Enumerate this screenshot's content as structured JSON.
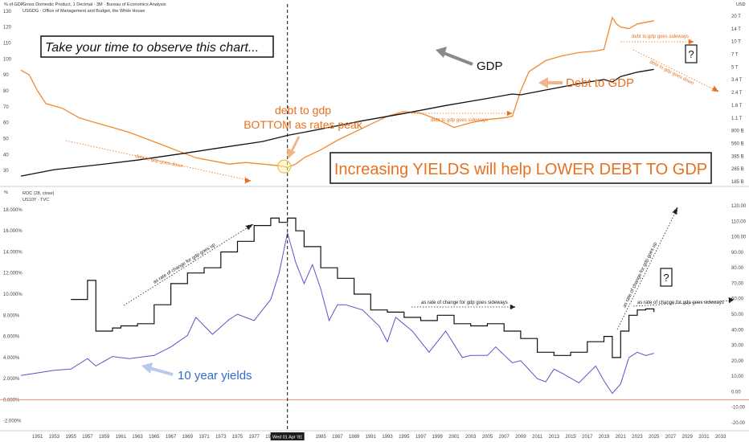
{
  "top_panel": {
    "left_unit": "% of GDP",
    "right_unit": "USD",
    "title_line1": "Gross Domestic Product, 1 Decimal · 3M · Bureau of Economics Analysis",
    "title_line2": "USGDG · Office of Management and Budget, the White House"
  },
  "bottom_panel": {
    "left_unit": "%",
    "title_line1": "ROC (28, close)",
    "title_line2": "US10Y · TVC"
  },
  "date_marker": "Wed 01 Apr '81",
  "annotations": {
    "observe": "Take your time to observe this chart...",
    "gdp": "GDP",
    "debt_to_gdp": "Debt to GDP",
    "bottom_line1": "debt to gdp",
    "bottom_line2": "BOTTOM as rates peak",
    "increasing": "Increasing YIELDS will help LOWER DEBT TO GDP",
    "goes_down_1": "debt to gdp goes down",
    "goes_sideways_1": "debt to gdp goes sideways",
    "goes_sideways_2": "debt to gdp goes sideways",
    "goes_down_2": "debt to gdp goes down",
    "question": "?",
    "roc_up_1": "as rate of change for gdp goes up",
    "roc_sideways": "as rate of change for gdp goes sideways",
    "roc_up_2": "as rate of change for gdp goes up",
    "roc_sideways_2": "as rate of change for gdp goes sideways",
    "ten_year": "10 year yields"
  },
  "colors": {
    "gdp": "#111111",
    "debt": "#f2892c",
    "yields": "#6050c8",
    "roc": "#111111",
    "zero": "#f4a07a",
    "accent_orange": "#e8701e",
    "accent_blue": "#2f6bd0",
    "marker": "#f5c43a"
  },
  "chart_data": [
    {
      "type": "line",
      "name": "top",
      "xlim": [
        1949,
        2034
      ],
      "ylim_left": [
        23,
        135
      ],
      "yticks_left": [
        30,
        40,
        50,
        60,
        70,
        80,
        90,
        100,
        110,
        120,
        130
      ],
      "ytick_labels_right": [
        "185 B",
        "265 B",
        "385 B",
        "560 B",
        "800 B",
        "1.1 T",
        "1.6 T",
        "2.4 T",
        "3.4 T",
        "5 T",
        "7 T",
        "10 T",
        "14 T",
        "20 T"
      ],
      "series": [
        {
          "name": "Debt to GDP",
          "x": [
            1949,
            1950,
            1951,
            1952,
            1954,
            1956,
            1958,
            1960,
            1962,
            1964,
            1966,
            1968,
            1970,
            1972,
            1974,
            1976,
            1978,
            1980,
            1981,
            1982,
            1983,
            1985,
            1987,
            1989,
            1991,
            1993,
            1995,
            1997,
            1999,
            2001,
            2003,
            2005,
            2007,
            2008,
            2009,
            2010,
            2012,
            2014,
            2016,
            2018,
            2019,
            2020,
            2020.5,
            2021,
            2022,
            2023,
            2024,
            2025
          ],
          "y": [
            93,
            90,
            80,
            72,
            69,
            63,
            60,
            57,
            54,
            50,
            46,
            42,
            38,
            36,
            34,
            35,
            34,
            33,
            32,
            34,
            38,
            43,
            49,
            54,
            59,
            64,
            67,
            66,
            62,
            57,
            60,
            62,
            63,
            64,
            80,
            92,
            99,
            102,
            104,
            105,
            106,
            126,
            122,
            120,
            119,
            122,
            123,
            124
          ]
        },
        {
          "name": "GDP",
          "x": [
            1949,
            1953,
            1958,
            1963,
            1968,
            1973,
            1978,
            1981,
            1985,
            1990,
            1995,
            2000,
            2005,
            2008,
            2009,
            2012,
            2016,
            2019,
            2020,
            2021,
            2023,
            2025
          ],
          "y": [
            26.5,
            30.5,
            33.4,
            36.5,
            40.3,
            44.3,
            48.2,
            52.0,
            56.0,
            61.2,
            65.8,
            70.8,
            75.2,
            78.0,
            77.5,
            80.5,
            84.5,
            87.1,
            85.5,
            89.0,
            91.7,
            93.5
          ]
        }
      ]
    },
    {
      "type": "line",
      "name": "bottom",
      "xlim": [
        1949,
        2034
      ],
      "ylim": [
        -2.4,
        18.6
      ],
      "yticks_left": [
        -2,
        0,
        2,
        4,
        6,
        8,
        10,
        12,
        14,
        16,
        18
      ],
      "ytick_labels_left": [
        "-2.000%",
        "0.000%",
        "2.000%",
        "4.000%",
        "6.000%",
        "8.000%",
        "10.000%",
        "12.000%",
        "14.000%",
        "16.000%",
        "18.000%"
      ],
      "ytick_labels_right": [
        "-20.00",
        "-10.00",
        "0.00",
        "10.00",
        "20.00",
        "30.00",
        "40.00",
        "50.00",
        "60.00",
        "70.00",
        "80.00",
        "90.00",
        "100.00",
        "110.00",
        "120.00"
      ],
      "xticks": [
        1951,
        1953,
        1955,
        1957,
        1959,
        1961,
        1963,
        1965,
        1967,
        1969,
        1971,
        1973,
        1975,
        1977,
        1979,
        1985,
        1987,
        1989,
        1991,
        1993,
        1995,
        1997,
        1999,
        2001,
        2003,
        2005,
        2007,
        2009,
        2011,
        2013,
        2015,
        2017,
        2019,
        2021,
        2023,
        2025,
        2027,
        2029,
        2031,
        2033
      ],
      "series": [
        {
          "name": "US10Y",
          "x": [
            1949,
            1953,
            1955,
            1957,
            1958,
            1960,
            1962,
            1965,
            1967,
            1969,
            1970,
            1972,
            1974,
            1975,
            1977,
            1979,
            1980,
            1981,
            1982,
            1983,
            1984,
            1985,
            1986,
            1987,
            1988,
            1990,
            1992,
            1993,
            1994,
            1996,
            1998,
            2000,
            2002,
            2003,
            2005,
            2006,
            2008,
            2009,
            2011,
            2012,
            2013,
            2014,
            2016,
            2018,
            2019,
            2020,
            2021,
            2022,
            2023,
            2024,
            2025
          ],
          "y": [
            2.3,
            2.8,
            2.9,
            3.9,
            3.2,
            4.1,
            3.9,
            4.2,
            5.0,
            6.1,
            7.8,
            6.2,
            7.6,
            8.1,
            7.5,
            9.5,
            12.0,
            15.8,
            13.0,
            11.0,
            12.8,
            10.5,
            7.5,
            9.0,
            9.0,
            8.5,
            7.0,
            5.5,
            7.8,
            6.5,
            4.5,
            6.5,
            4.0,
            4.2,
            4.2,
            5.0,
            3.5,
            3.7,
            2.0,
            1.7,
            2.9,
            2.5,
            1.6,
            3.2,
            1.8,
            0.6,
            1.5,
            4.0,
            4.5,
            4.2,
            4.4
          ]
        },
        {
          "name": "ROC (28, close)",
          "x": [
            1955,
            1957,
            1958,
            1960,
            1961,
            1963,
            1965,
            1967,
            1969,
            1971,
            1973,
            1975,
            1977,
            1979,
            1980,
            1981,
            1982,
            1983,
            1985,
            1987,
            1989,
            1991,
            1993,
            1995,
            1997,
            1999,
            2001,
            2003,
            2005,
            2007,
            2009,
            2011,
            2013,
            2015,
            2017,
            2019,
            2020,
            2021,
            2022,
            2023,
            2024,
            2025
          ],
          "y": [
            9.5,
            11.3,
            6.5,
            6.8,
            7.0,
            7.2,
            9.0,
            11.0,
            12.0,
            12.5,
            14.0,
            15.0,
            16.5,
            17.2,
            16.8,
            17.2,
            16.0,
            14.5,
            12.5,
            11.5,
            10.0,
            8.5,
            8.3,
            7.8,
            7.5,
            8.0,
            7.2,
            7.0,
            7.2,
            6.5,
            5.8,
            4.5,
            4.2,
            4.5,
            5.5,
            6.0,
            4.0,
            6.5,
            8.0,
            8.5,
            8.6,
            8.3
          ]
        }
      ]
    }
  ]
}
